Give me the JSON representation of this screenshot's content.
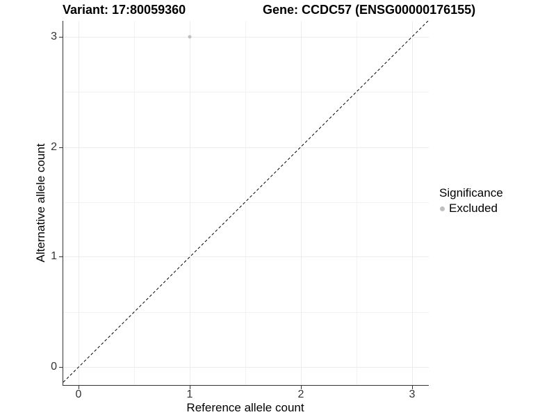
{
  "header": {
    "variant_title": "Variant: 17:80059360",
    "gene_title": "Gene: CCDC57 (ENSG00000176155)"
  },
  "chart_data": {
    "type": "scatter",
    "title_left": "Variant: 17:80059360",
    "title_right": "Gene: CCDC57 (ENSG00000176155)",
    "xlabel": "Reference allele count",
    "ylabel": "Alternative allele count",
    "xlim": [
      -0.15,
      3.15
    ],
    "ylim": [
      -0.15,
      3.15
    ],
    "x_ticks": [
      0,
      1,
      2,
      3
    ],
    "y_ticks": [
      0,
      1,
      2,
      3
    ],
    "x_tick_labels": [
      "0",
      "1",
      "2",
      "3"
    ],
    "y_tick_labels": [
      "0",
      "1",
      "2",
      "3"
    ],
    "grid": "on",
    "grid_minor": "on",
    "series": [
      {
        "name": "Excluded",
        "marker": "circle",
        "color": "#bfbfbf",
        "points": [
          {
            "x": 1,
            "y": 3
          }
        ]
      }
    ],
    "reference_line": {
      "kind": "identity",
      "from": {
        "x": -0.15,
        "y": -0.15
      },
      "to": {
        "x": 3.15,
        "y": 3.15
      },
      "style": "dashed",
      "color": "#000000"
    },
    "legend": {
      "title": "Significance",
      "position": "right",
      "items": [
        {
          "label": "Excluded",
          "color": "#bfbfbf",
          "marker": "circle"
        }
      ]
    },
    "colors": {
      "background": "#ffffff",
      "grid_major": "#ececec",
      "grid_minor": "#f2f2f2",
      "axis_line": "#333333",
      "tick_text": "#333333",
      "title_text": "#000000"
    }
  }
}
